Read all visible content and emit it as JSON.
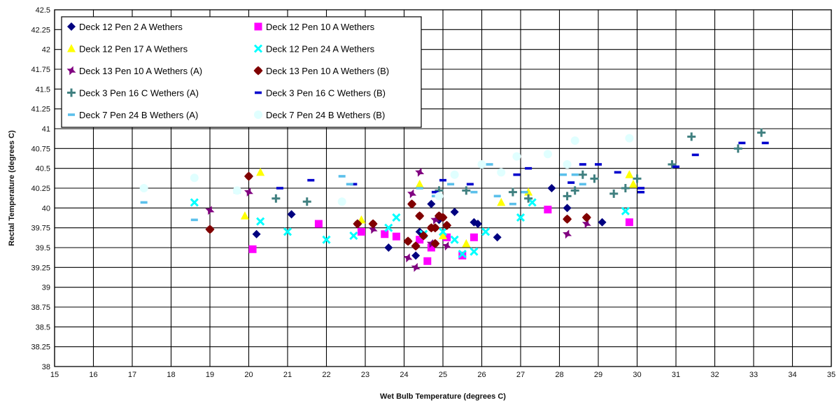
{
  "chart_data": {
    "type": "scatter",
    "title": "",
    "xlabel": "Wet Bulb Temperature (degrees C)",
    "ylabel": "Rectal Temperature (degrees C)",
    "xlim": [
      15,
      35
    ],
    "ylim": [
      38,
      42.5
    ],
    "grid": true,
    "legend_position": "top-left",
    "x_ticks": [
      "15",
      "16",
      "17",
      "18",
      "19",
      "20",
      "21",
      "22",
      "23",
      "24",
      "25",
      "26",
      "27",
      "28",
      "29",
      "30",
      "31",
      "32",
      "33",
      "34",
      "35"
    ],
    "y_ticks": [
      "38",
      "38.25",
      "38.5",
      "38.75",
      "39",
      "39.25",
      "39.5",
      "39.75",
      "40",
      "40.25",
      "40.5",
      "40.75",
      "41",
      "41.25",
      "41.5",
      "41.75",
      "42",
      "42.25",
      "42.5"
    ],
    "series": [
      {
        "name": "Deck 12 Pen 2 A Wethers",
        "marker": "diamond",
        "color": "#000080",
        "points": [
          [
            20.2,
            39.67
          ],
          [
            21.1,
            39.92
          ],
          [
            23.6,
            39.5
          ],
          [
            24.3,
            39.4
          ],
          [
            24.4,
            39.7
          ],
          [
            24.7,
            40.05
          ],
          [
            24.9,
            39.85
          ],
          [
            25.3,
            39.95
          ],
          [
            25.8,
            39.82
          ],
          [
            25.9,
            39.8
          ],
          [
            26.4,
            39.63
          ],
          [
            27.8,
            40.25
          ],
          [
            28.2,
            40.0
          ],
          [
            29.1,
            39.82
          ]
        ]
      },
      {
        "name": "Deck 12 Pen 10 A Wethers",
        "marker": "square",
        "color": "#FF00FF",
        "points": [
          [
            20.1,
            39.48
          ],
          [
            21.8,
            39.8
          ],
          [
            22.9,
            39.7
          ],
          [
            23.5,
            39.67
          ],
          [
            23.8,
            39.64
          ],
          [
            24.4,
            39.6
          ],
          [
            24.6,
            39.33
          ],
          [
            24.7,
            39.5
          ],
          [
            25.1,
            39.63
          ],
          [
            25.5,
            39.4
          ],
          [
            25.8,
            39.63
          ],
          [
            27.7,
            39.98
          ],
          [
            29.8,
            39.82
          ]
        ]
      },
      {
        "name": "Deck 12 Pen 17 A Wethers",
        "marker": "triangle",
        "color": "#FFFF00",
        "points": [
          [
            19.9,
            39.9
          ],
          [
            20.3,
            40.45
          ],
          [
            22.9,
            39.85
          ],
          [
            24.4,
            40.3
          ],
          [
            25.0,
            39.65
          ],
          [
            25.6,
            39.55
          ],
          [
            26.5,
            40.07
          ],
          [
            27.2,
            40.2
          ],
          [
            29.8,
            40.42
          ],
          [
            29.9,
            40.3
          ]
        ]
      },
      {
        "name": "Deck 12 Pen 24 A Wethers",
        "marker": "x",
        "color": "#00FFFF",
        "points": [
          [
            18.6,
            40.07
          ],
          [
            20.3,
            39.83
          ],
          [
            21.0,
            39.7
          ],
          [
            22.0,
            39.6
          ],
          [
            22.7,
            39.65
          ],
          [
            23.6,
            39.75
          ],
          [
            23.8,
            39.88
          ],
          [
            24.5,
            39.67
          ],
          [
            25.0,
            39.7
          ],
          [
            25.3,
            39.6
          ],
          [
            25.5,
            39.42
          ],
          [
            25.8,
            39.45
          ],
          [
            26.1,
            39.7
          ],
          [
            27.0,
            39.88
          ],
          [
            27.3,
            40.07
          ],
          [
            29.7,
            39.96
          ]
        ]
      },
      {
        "name": "Deck 13 Pen 10 A Wethers (A)",
        "marker": "star",
        "color": "#800080",
        "points": [
          [
            19.0,
            39.97
          ],
          [
            20.0,
            40.2
          ],
          [
            23.2,
            39.73
          ],
          [
            24.1,
            39.37
          ],
          [
            24.2,
            40.18
          ],
          [
            24.3,
            39.25
          ],
          [
            24.4,
            40.45
          ],
          [
            24.7,
            39.55
          ],
          [
            24.8,
            39.85
          ],
          [
            25.1,
            39.52
          ],
          [
            28.2,
            39.67
          ],
          [
            28.7,
            39.8
          ]
        ]
      },
      {
        "name": "Deck 13 Pen 10 A Wethers (B)",
        "marker": "hexagon",
        "color": "#800000",
        "points": [
          [
            19.0,
            39.73
          ],
          [
            20.0,
            40.4
          ],
          [
            22.8,
            39.8
          ],
          [
            23.2,
            39.8
          ],
          [
            24.1,
            39.58
          ],
          [
            24.2,
            40.05
          ],
          [
            24.3,
            39.52
          ],
          [
            24.4,
            39.9
          ],
          [
            24.5,
            39.65
          ],
          [
            24.7,
            39.75
          ],
          [
            24.8,
            39.55
          ],
          [
            24.8,
            39.75
          ],
          [
            24.9,
            39.9
          ],
          [
            25.0,
            39.88
          ],
          [
            25.1,
            39.78
          ],
          [
            28.2,
            39.86
          ],
          [
            28.7,
            39.88
          ]
        ]
      },
      {
        "name": "Deck 3 Pen 16 C Wethers (A)",
        "marker": "plus",
        "color": "#408080",
        "points": [
          [
            20.7,
            40.12
          ],
          [
            21.5,
            40.08
          ],
          [
            24.9,
            40.22
          ],
          [
            25.6,
            40.22
          ],
          [
            26.8,
            40.2
          ],
          [
            27.2,
            40.12
          ],
          [
            28.2,
            40.15
          ],
          [
            28.4,
            40.22
          ],
          [
            28.6,
            40.42
          ],
          [
            28.9,
            40.37
          ],
          [
            29.4,
            40.18
          ],
          [
            29.7,
            40.25
          ],
          [
            30.0,
            40.37
          ],
          [
            30.9,
            40.55
          ],
          [
            31.4,
            40.9
          ],
          [
            32.6,
            40.75
          ],
          [
            33.2,
            40.95
          ]
        ]
      },
      {
        "name": "Deck 3 Pen 16 C Wethers (B)",
        "marker": "dash",
        "color": "#0000CD",
        "points": [
          [
            20.8,
            40.25
          ],
          [
            21.6,
            40.35
          ],
          [
            22.7,
            40.3
          ],
          [
            24.8,
            40.2
          ],
          [
            25.0,
            40.35
          ],
          [
            25.7,
            40.3
          ],
          [
            26.9,
            40.42
          ],
          [
            27.2,
            40.5
          ],
          [
            28.3,
            40.32
          ],
          [
            28.6,
            40.55
          ],
          [
            29.0,
            40.55
          ],
          [
            29.5,
            40.45
          ],
          [
            30.1,
            40.25
          ],
          [
            30.1,
            40.2
          ],
          [
            31.0,
            40.52
          ],
          [
            31.5,
            40.67
          ],
          [
            32.7,
            40.82
          ],
          [
            33.3,
            40.82
          ]
        ]
      },
      {
        "name": "Deck 7 Pen 24 B Wethers (A)",
        "marker": "dash",
        "color": "#5BC0EB",
        "points": [
          [
            17.3,
            40.07
          ],
          [
            18.6,
            39.85
          ],
          [
            19.7,
            40.2
          ],
          [
            22.4,
            40.4
          ],
          [
            22.6,
            40.3
          ],
          [
            24.4,
            40.25
          ],
          [
            24.8,
            40.15
          ],
          [
            25.2,
            40.3
          ],
          [
            25.8,
            40.2
          ],
          [
            26.2,
            40.55
          ],
          [
            26.4,
            40.15
          ],
          [
            26.8,
            40.05
          ],
          [
            27.1,
            40.2
          ],
          [
            28.1,
            40.42
          ],
          [
            28.4,
            40.42
          ],
          [
            28.6,
            40.3
          ]
        ]
      },
      {
        "name": "Deck 7 Pen 24 B Wethers (B)",
        "marker": "circle",
        "color": "#E0FFFF",
        "points": [
          [
            17.3,
            40.25
          ],
          [
            18.6,
            40.38
          ],
          [
            19.7,
            40.22
          ],
          [
            22.4,
            40.08
          ],
          [
            24.9,
            40.15
          ],
          [
            25.3,
            40.42
          ],
          [
            26.0,
            40.55
          ],
          [
            26.5,
            40.45
          ],
          [
            26.9,
            40.65
          ],
          [
            27.7,
            40.68
          ],
          [
            28.2,
            40.55
          ],
          [
            28.4,
            40.85
          ],
          [
            29.8,
            40.88
          ]
        ]
      }
    ]
  }
}
